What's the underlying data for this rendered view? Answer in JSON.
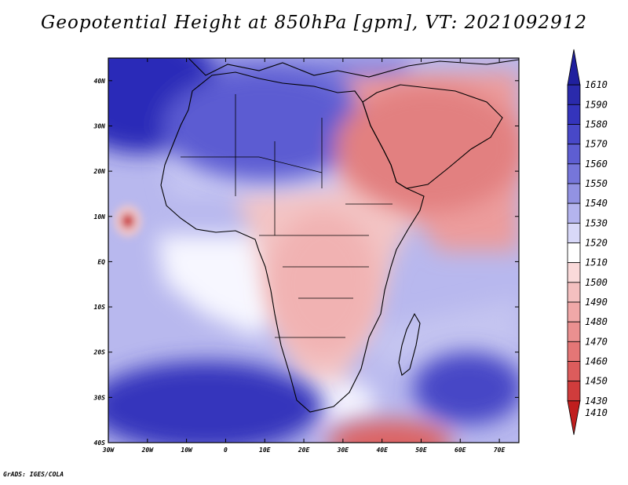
{
  "title": "Geopotential Height at 850hPa [gpm], VT: 2021092912",
  "footer": "GrADS: IGES/COLA",
  "map": {
    "lon_range": [
      -30,
      75
    ],
    "lat_range": [
      -40,
      45
    ],
    "lon_ticks": [
      {
        "value": -30,
        "label": "30W"
      },
      {
        "value": -20,
        "label": "20W"
      },
      {
        "value": -10,
        "label": "10W"
      },
      {
        "value": 0,
        "label": "0"
      },
      {
        "value": 10,
        "label": "10E"
      },
      {
        "value": 20,
        "label": "20E"
      },
      {
        "value": 30,
        "label": "30E"
      },
      {
        "value": 40,
        "label": "40E"
      },
      {
        "value": 50,
        "label": "50E"
      },
      {
        "value": 60,
        "label": "60E"
      },
      {
        "value": 70,
        "label": "70E"
      }
    ],
    "lat_ticks": [
      {
        "value": 40,
        "label": "40N"
      },
      {
        "value": 30,
        "label": "30N"
      },
      {
        "value": 20,
        "label": "20N"
      },
      {
        "value": 10,
        "label": "10N"
      },
      {
        "value": 0,
        "label": "EQ"
      },
      {
        "value": -10,
        "label": "10S"
      },
      {
        "value": -20,
        "label": "20S"
      },
      {
        "value": -30,
        "label": "30S"
      },
      {
        "value": -40,
        "label": "40S"
      }
    ],
    "fill_features": [
      {
        "name": "high-north-atlantic",
        "lon": -22,
        "lat": 38,
        "rlon": 20,
        "rlat": 14,
        "color": "#2c2cb8"
      },
      {
        "name": "high-sahara",
        "lon": 10,
        "lat": 30,
        "rlon": 26,
        "rlat": 12,
        "color": "#5c5cd2"
      },
      {
        "name": "high-south-atlantic",
        "lon": -5,
        "lat": -32,
        "rlon": 30,
        "rlat": 10,
        "color": "#3434bc"
      },
      {
        "name": "high-indian-ocean",
        "lon": 62,
        "lat": -28,
        "rlon": 14,
        "rlat": 8,
        "color": "#4646c6"
      },
      {
        "name": "low-arabia",
        "lon": 52,
        "lat": 25,
        "rlon": 24,
        "rlat": 14,
        "color": "#e28080"
      },
      {
        "name": "low-east-africa",
        "lon": 25,
        "lat": -5,
        "rlon": 14,
        "rlat": 16,
        "color": "#f1b2b2"
      },
      {
        "name": "low-atlantic-cyclone",
        "lon": -25,
        "lat": 9,
        "rlon": 1.6,
        "rlat": 1.6,
        "color": "#c81e1e"
      },
      {
        "name": "low-southern-ocean",
        "lon": 42,
        "lat": -40,
        "rlon": 16,
        "rlat": 5,
        "color": "#dc6464"
      }
    ]
  },
  "colorbar": {
    "levels": [
      {
        "label": "1610",
        "color": "#20209e"
      },
      {
        "label": "1590",
        "color": "#2a2aac"
      },
      {
        "label": "1580",
        "color": "#3434bc"
      },
      {
        "label": "1570",
        "color": "#4848c8"
      },
      {
        "label": "1560",
        "color": "#5e5ed2"
      },
      {
        "label": "1550",
        "color": "#7676da"
      },
      {
        "label": "1540",
        "color": "#9292e2"
      },
      {
        "label": "1530",
        "color": "#b4b4ee"
      },
      {
        "label": "1520",
        "color": "#d8d8f8"
      },
      {
        "label": "1510",
        "color": "#ffffff"
      },
      {
        "label": "1500",
        "color": "#fadada"
      },
      {
        "label": "1490",
        "color": "#f4c0c0"
      },
      {
        "label": "1480",
        "color": "#f0a8a8"
      },
      {
        "label": "1470",
        "color": "#ea9090"
      },
      {
        "label": "1460",
        "color": "#e47676"
      },
      {
        "label": "1450",
        "color": "#dc5c5c"
      },
      {
        "label": "1430",
        "color": "#d03c3c"
      },
      {
        "label": "1410",
        "color": "#c01e1e"
      }
    ]
  }
}
